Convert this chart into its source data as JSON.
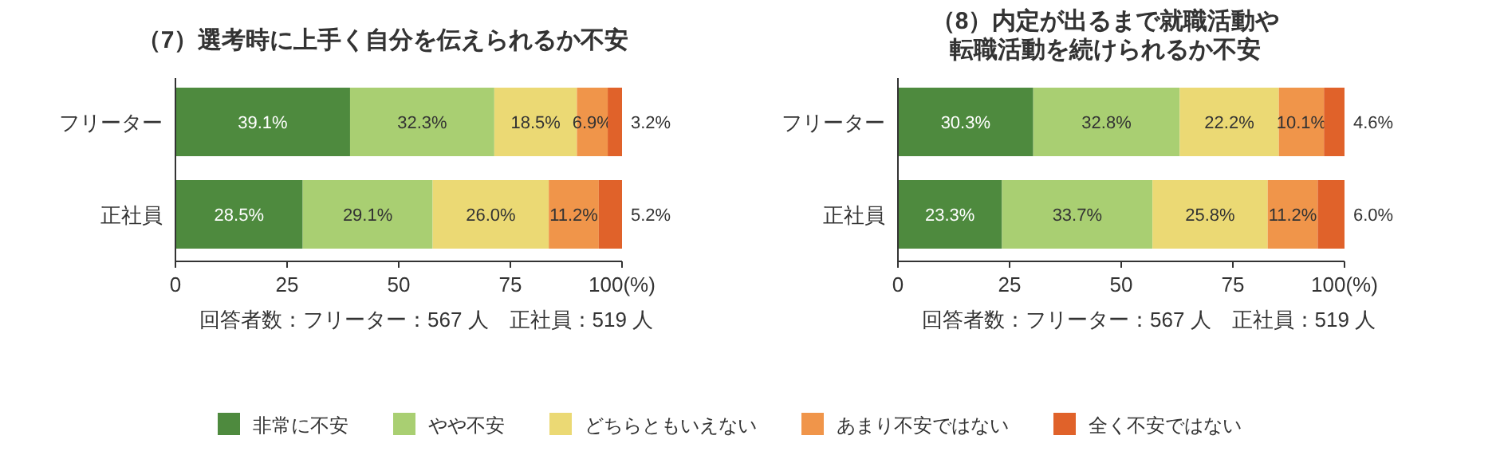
{
  "chart_data": [
    {
      "type": "bar",
      "orientation": "horizontal",
      "stacked": true,
      "title": "（7）選考時に上手く自分を伝えられるか不安",
      "categories": [
        "フリーター",
        "正社員"
      ],
      "series": [
        {
          "name": "非常に不安",
          "color": "#4e8a3e",
          "values": [
            39.1,
            28.5
          ],
          "value_labels": [
            "39.1%",
            "28.5%"
          ]
        },
        {
          "name": "やや不安",
          "color": "#a9cf72",
          "values": [
            32.3,
            29.1
          ],
          "value_labels": [
            "32.3%",
            "29.1%"
          ]
        },
        {
          "name": "どちらともいえない",
          "color": "#ebd974",
          "values": [
            18.5,
            26.0
          ],
          "value_labels": [
            "18.5%",
            "26.0%"
          ]
        },
        {
          "name": "あまり不安ではない",
          "color": "#f0954a",
          "values": [
            6.9,
            11.2
          ],
          "value_labels": [
            "6.9%",
            "11.2%"
          ]
        },
        {
          "name": "全く不安ではない",
          "color": "#e0622a",
          "values": [
            3.2,
            5.2
          ],
          "value_labels": [
            "3.2%",
            "5.2%"
          ]
        }
      ],
      "xlim": [
        0,
        100
      ],
      "xticks": [
        0,
        25,
        50,
        75,
        {
          "value": 100,
          "label": "100(%)"
        }
      ],
      "grid": false,
      "legend": "bottom",
      "annotations": [
        "回答者数：フリーター：567 人　正社員：519 人"
      ]
    },
    {
      "type": "bar",
      "orientation": "horizontal",
      "stacked": true,
      "title": "（8）内定が出るまで就職活動や転職活動を続けられるか不安",
      "categories": [
        "フリーター",
        "正社員"
      ],
      "series": [
        {
          "color": "#4e8a3e",
          "values": [
            30.3,
            23.3
          ],
          "value_labels": [
            "30.3%",
            "23.3%"
          ]
        },
        {
          "color": "#a9cf72",
          "values": [
            32.8,
            33.7
          ],
          "value_labels": [
            "32.8%",
            "33.7%"
          ]
        },
        {
          "color": "#ebd974",
          "values": [
            22.2,
            25.8
          ],
          "value_labels": [
            "22.2%",
            "25.8%"
          ]
        },
        {
          "color": "#f0954a",
          "values": [
            10.1,
            11.2
          ],
          "value_labels": [
            "10.1%",
            "11.2%"
          ]
        },
        {
          "color": "#e0622a",
          "values": [
            4.6,
            6.0
          ],
          "value_labels": [
            "4.6%",
            "6.0%"
          ]
        }
      ],
      "xlim": [
        0,
        100
      ],
      "xticks": [
        0,
        25,
        50,
        75,
        {
          "value": 100,
          "label": "100(%)"
        }
      ],
      "grid": false,
      "annotations": [
        "回答者数：フリーター：567 人　正社員：519 人"
      ]
    }
  ]
}
